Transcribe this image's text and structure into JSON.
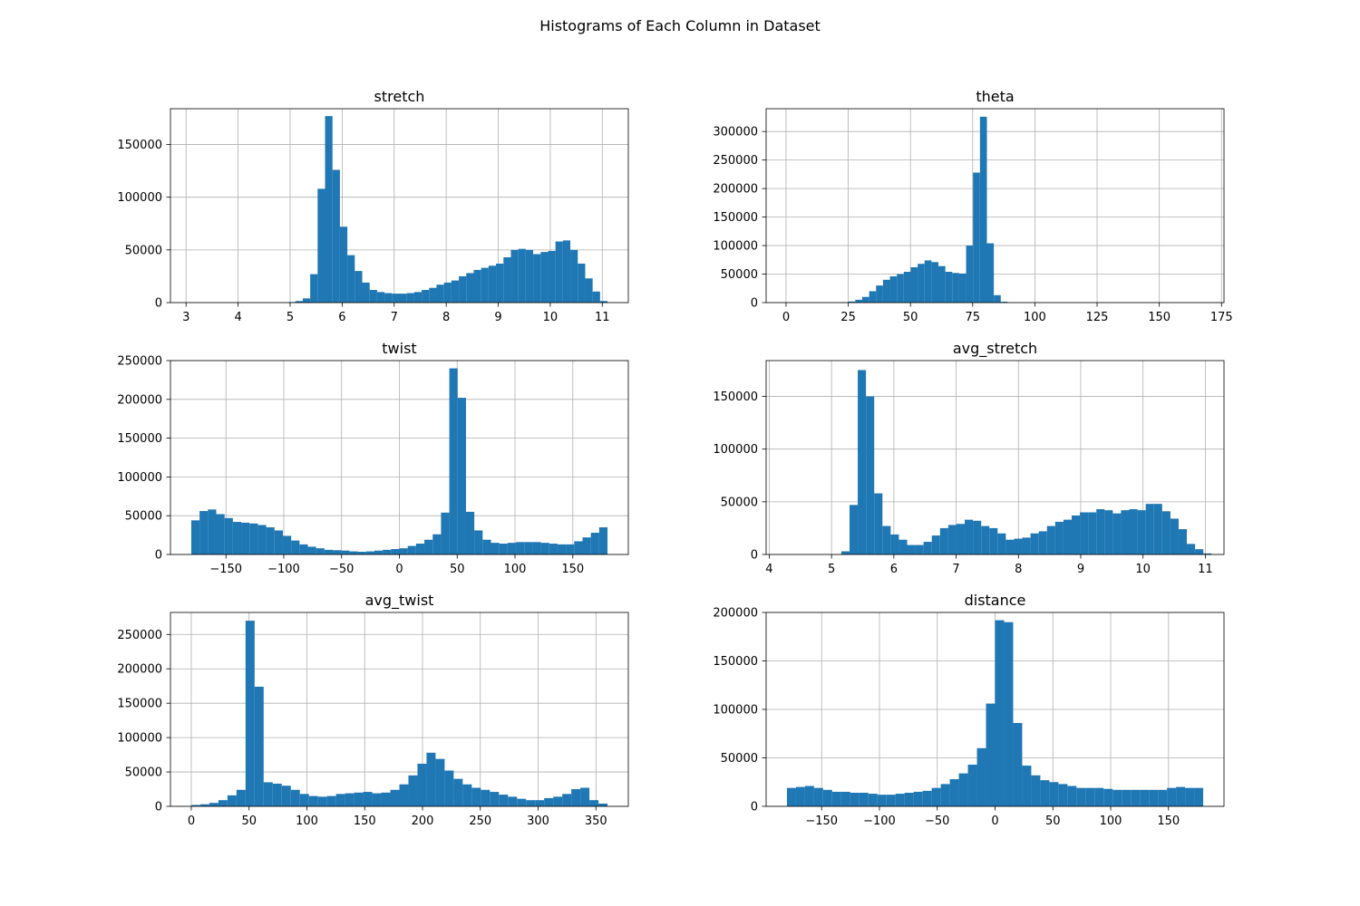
{
  "figure": {
    "title": "Histograms of Each Column in Dataset"
  },
  "style": {
    "bar_color": "#1f77b4",
    "grid_color": "#b0b0b0",
    "axis_color": "#000000"
  },
  "chart_data": [
    {
      "type": "bar",
      "title": "stretch",
      "bin_range": [
        3.1,
        11.1
      ],
      "xlim": [
        2.7,
        11.5
      ],
      "ylim": [
        0,
        184000
      ],
      "xticks": [
        3,
        4,
        5,
        6,
        7,
        8,
        9,
        10,
        11
      ],
      "xtick_labels": [
        "3",
        "4",
        "5",
        "6",
        "7",
        "8",
        "9",
        "10",
        "11"
      ],
      "yticks": [
        0,
        50000,
        100000,
        150000
      ],
      "ytick_labels": [
        "0",
        "50000",
        "100000",
        "150000"
      ],
      "grid": true,
      "values": [
        0,
        0,
        0,
        0,
        0,
        0,
        0,
        0,
        0,
        0,
        0,
        0,
        0,
        500,
        1500,
        4000,
        27000,
        108000,
        177000,
        126000,
        72000,
        45000,
        30000,
        19000,
        12000,
        10000,
        9000,
        8500,
        8500,
        9000,
        10000,
        12000,
        14000,
        17000,
        19000,
        21000,
        25000,
        28000,
        31000,
        33000,
        35000,
        37000,
        43000,
        50000,
        51000,
        50000,
        46000,
        48000,
        49000,
        58000,
        59000,
        50000,
        37000,
        23000,
        10500,
        1500
      ]
    },
    {
      "type": "bar",
      "title": "theta",
      "bin_range": [
        0,
        167
      ],
      "xlim": [
        -8,
        176
      ],
      "ylim": [
        0,
        340000
      ],
      "xticks": [
        0,
        25,
        50,
        75,
        100,
        125,
        150,
        175
      ],
      "xtick_labels": [
        "0",
        "25",
        "50",
        "75",
        "100",
        "125",
        "150",
        "175"
      ],
      "yticks": [
        0,
        50000,
        100000,
        150000,
        200000,
        250000,
        300000
      ],
      "ytick_labels": [
        "0",
        "50000",
        "100000",
        "150000",
        "200000",
        "250000",
        "300000"
      ],
      "grid": true,
      "values": [
        0,
        0,
        0,
        0,
        0,
        0,
        0,
        0,
        500,
        2000,
        5000,
        10000,
        20000,
        30000,
        40000,
        46000,
        50000,
        54000,
        62000,
        68000,
        74000,
        71000,
        64000,
        54000,
        52000,
        51000,
        100000,
        228000,
        326000,
        104000,
        13000,
        1500,
        0,
        0,
        0,
        0,
        0,
        0,
        0,
        0,
        0,
        0,
        0,
        0,
        0,
        0,
        0,
        0,
        0,
        0,
        0,
        0,
        0,
        0,
        0,
        0,
        0,
        0,
        0,
        0
      ]
    },
    {
      "type": "bar",
      "title": "twist",
      "bin_range": [
        -180,
        180
      ],
      "xlim": [
        -198,
        198
      ],
      "ylim": [
        0,
        250000
      ],
      "xticks": [
        -150,
        -100,
        -50,
        0,
        50,
        100,
        150
      ],
      "xtick_labels": [
        "−150",
        "−100",
        "−50",
        "0",
        "50",
        "100",
        "150"
      ],
      "yticks": [
        0,
        50000,
        100000,
        150000,
        200000,
        250000
      ],
      "ytick_labels": [
        "0",
        "50000",
        "100000",
        "150000",
        "200000",
        "250000"
      ],
      "grid": true,
      "values": [
        44000,
        56000,
        58000,
        52000,
        47000,
        42000,
        41000,
        40000,
        38000,
        35000,
        31000,
        24000,
        18000,
        13000,
        10000,
        8000,
        6000,
        5500,
        5000,
        4000,
        3500,
        4000,
        5000,
        6000,
        7000,
        8000,
        11000,
        14000,
        19000,
        26000,
        54000,
        240000,
        202000,
        55000,
        31000,
        19000,
        15000,
        14000,
        15000,
        16000,
        16000,
        16000,
        15000,
        14000,
        13000,
        13000,
        17000,
        22000,
        28000,
        35000
      ]
    },
    {
      "type": "bar",
      "title": "avg_stretch",
      "bin_range": [
        4.1,
        11.1
      ],
      "xlim": [
        3.95,
        11.3
      ],
      "ylim": [
        0,
        184000
      ],
      "xticks": [
        4,
        5,
        6,
        7,
        8,
        9,
        10,
        11
      ],
      "xtick_labels": [
        "4",
        "5",
        "6",
        "7",
        "8",
        "9",
        "10",
        "11"
      ],
      "yticks": [
        0,
        50000,
        100000,
        150000
      ],
      "ytick_labels": [
        "0",
        "50000",
        "100000",
        "150000"
      ],
      "grid": true,
      "values": [
        0,
        0,
        0,
        0,
        0,
        0,
        0,
        0,
        3000,
        47000,
        175000,
        150000,
        58000,
        27000,
        19000,
        14000,
        9000,
        9000,
        12000,
        18000,
        25000,
        28000,
        29000,
        33000,
        32000,
        27000,
        25000,
        20000,
        14000,
        15000,
        16000,
        20000,
        22000,
        27000,
        31000,
        33000,
        37000,
        40000,
        40000,
        43000,
        42000,
        39000,
        42000,
        43000,
        42000,
        48000,
        48000,
        41000,
        34000,
        24000,
        10000,
        5000,
        1000
      ]
    },
    {
      "type": "bar",
      "title": "avg_twist",
      "bin_range": [
        0,
        360
      ],
      "xlim": [
        -18,
        378
      ],
      "ylim": [
        0,
        282000
      ],
      "xticks": [
        0,
        50,
        100,
        150,
        200,
        250,
        300,
        350
      ],
      "xtick_labels": [
        "0",
        "50",
        "100",
        "150",
        "200",
        "250",
        "300",
        "350"
      ],
      "yticks": [
        0,
        50000,
        100000,
        150000,
        200000,
        250000
      ],
      "ytick_labels": [
        "0",
        "50000",
        "100000",
        "150000",
        "200000",
        "250000"
      ],
      "grid": true,
      "values": [
        2000,
        3000,
        5000,
        9000,
        16000,
        24000,
        270000,
        174000,
        35000,
        33000,
        30000,
        24000,
        18000,
        15000,
        14000,
        15000,
        18000,
        19000,
        20000,
        21000,
        19000,
        20000,
        24000,
        32000,
        45000,
        62000,
        78000,
        69000,
        52000,
        40000,
        32000,
        27000,
        24000,
        21000,
        17000,
        14000,
        11000,
        9000,
        9000,
        12000,
        14000,
        18000,
        25000,
        27000,
        9000,
        4000
      ]
    },
    {
      "type": "bar",
      "title": "distance",
      "bin_range": [
        -180,
        180
      ],
      "xlim": [
        -198,
        198
      ],
      "ylim": [
        0,
        200000
      ],
      "xticks": [
        -150,
        -100,
        -50,
        0,
        50,
        100,
        150
      ],
      "xtick_labels": [
        "−150",
        "−100",
        "−50",
        "0",
        "50",
        "100",
        "150"
      ],
      "yticks": [
        0,
        50000,
        100000,
        150000,
        200000
      ],
      "ytick_labels": [
        "0",
        "50000",
        "100000",
        "150000",
        "200000"
      ],
      "grid": true,
      "values": [
        19000,
        20000,
        21000,
        19000,
        17000,
        15000,
        15000,
        14000,
        14000,
        13000,
        12000,
        12000,
        13000,
        14000,
        15000,
        16000,
        19000,
        23000,
        28000,
        34000,
        43000,
        60000,
        106000,
        192000,
        190000,
        86000,
        42000,
        32000,
        27000,
        25000,
        23000,
        21000,
        19000,
        19000,
        19000,
        18000,
        17000,
        17000,
        17000,
        17000,
        17000,
        17000,
        19000,
        20000,
        19000,
        19000
      ]
    }
  ]
}
